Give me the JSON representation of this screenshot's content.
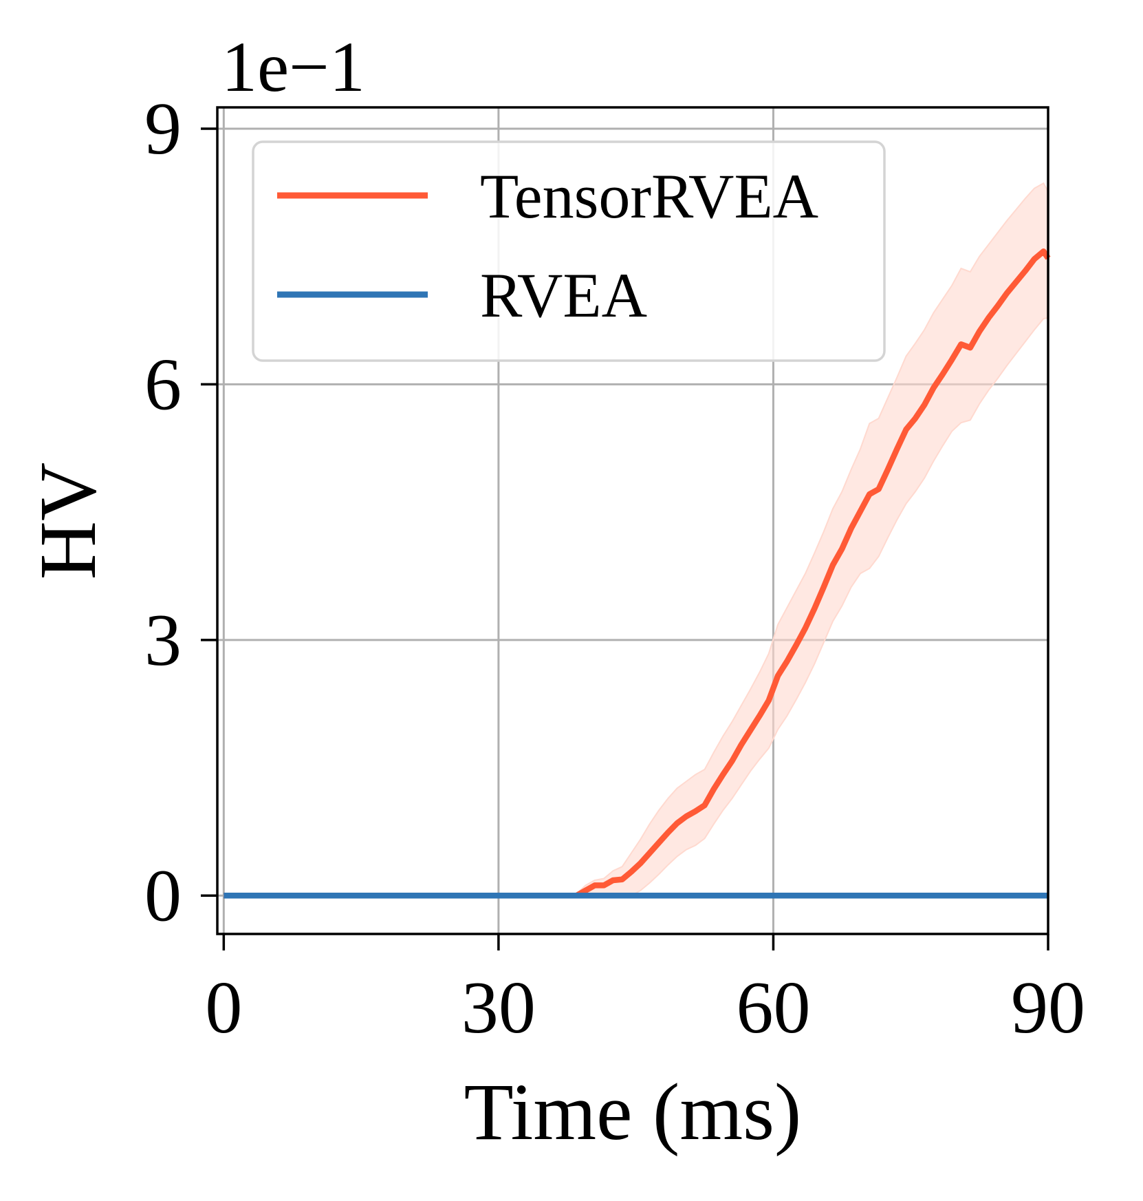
{
  "chart_data": {
    "type": "line",
    "xlabel": "Time (ms)",
    "ylabel": "HV",
    "y_offset_label": "1e−1",
    "xlim": [
      -0.7,
      90
    ],
    "ylim": [
      -0.45,
      9.25
    ],
    "x_ticks": [
      0,
      30,
      60,
      90
    ],
    "x_tick_labels": [
      "0",
      "30",
      "60",
      "90"
    ],
    "y_ticks": [
      0,
      3,
      6,
      9
    ],
    "y_tick_labels": [
      "0",
      "3",
      "6",
      "9"
    ],
    "grid": true,
    "legend_position": "top-left",
    "series": [
      {
        "name": "TensorRVEA",
        "color": "#ff5a36",
        "band_color": "#ffd9cf",
        "x": [
          0,
          20,
          38.5,
          39.5,
          40.5,
          41.5,
          42.5,
          43.5,
          44.5,
          45.5,
          46.5,
          47.5,
          48.5,
          49.5,
          50.5,
          51.5,
          52.5,
          53.5,
          54.5,
          55.5,
          56.5,
          57.5,
          58.5,
          59.5,
          60.5,
          61.5,
          62.5,
          63.5,
          64.5,
          65.5,
          66.5,
          67.5,
          68.5,
          69.5,
          70.5,
          71.5,
          72.5,
          73.5,
          74.5,
          75.5,
          76.5,
          77.5,
          78.5,
          79.5,
          80.5,
          81.5,
          82.5,
          83.5,
          84.5,
          85.5,
          86.5,
          87.5,
          88.5,
          89.5,
          90
        ],
        "y": [
          0,
          0,
          0,
          0.06,
          0.12,
          0.12,
          0.18,
          0.19,
          0.28,
          0.38,
          0.5,
          0.62,
          0.74,
          0.85,
          0.93,
          0.99,
          1.06,
          1.25,
          1.42,
          1.58,
          1.77,
          1.94,
          2.11,
          2.29,
          2.58,
          2.75,
          2.94,
          3.14,
          3.37,
          3.62,
          3.88,
          4.07,
          4.31,
          4.51,
          4.71,
          4.77,
          5.0,
          5.24,
          5.47,
          5.6,
          5.76,
          5.96,
          6.12,
          6.29,
          6.47,
          6.43,
          6.62,
          6.78,
          6.92,
          7.07,
          7.2,
          7.33,
          7.47,
          7.56,
          7.48
        ],
        "lower": [
          0,
          0,
          0,
          0,
          0,
          0,
          0,
          0,
          0,
          0.06,
          0.15,
          0.25,
          0.36,
          0.46,
          0.54,
          0.59,
          0.67,
          0.84,
          1.0,
          1.14,
          1.3,
          1.46,
          1.6,
          1.73,
          1.95,
          2.11,
          2.3,
          2.5,
          2.72,
          2.97,
          3.22,
          3.4,
          3.62,
          3.78,
          3.84,
          3.98,
          4.2,
          4.41,
          4.6,
          4.74,
          4.9,
          5.1,
          5.28,
          5.45,
          5.55,
          5.58,
          5.77,
          5.93,
          6.07,
          6.22,
          6.36,
          6.5,
          6.64,
          6.77,
          6.78
        ],
        "upper": [
          0,
          0,
          0.02,
          0.12,
          0.18,
          0.2,
          0.29,
          0.34,
          0.5,
          0.66,
          0.84,
          1.0,
          1.14,
          1.26,
          1.34,
          1.42,
          1.48,
          1.68,
          1.87,
          2.04,
          2.23,
          2.42,
          2.62,
          2.84,
          3.18,
          3.38,
          3.58,
          3.78,
          4.02,
          4.27,
          4.54,
          4.74,
          5.0,
          5.24,
          5.54,
          5.6,
          5.84,
          6.08,
          6.33,
          6.48,
          6.64,
          6.84,
          7.0,
          7.16,
          7.36,
          7.32,
          7.5,
          7.64,
          7.78,
          7.92,
          8.05,
          8.18,
          8.3,
          8.36,
          8.26
        ]
      },
      {
        "name": "RVEA",
        "color": "#2f75b5",
        "x": [
          0,
          90
        ],
        "y": [
          0,
          0
        ]
      }
    ]
  }
}
